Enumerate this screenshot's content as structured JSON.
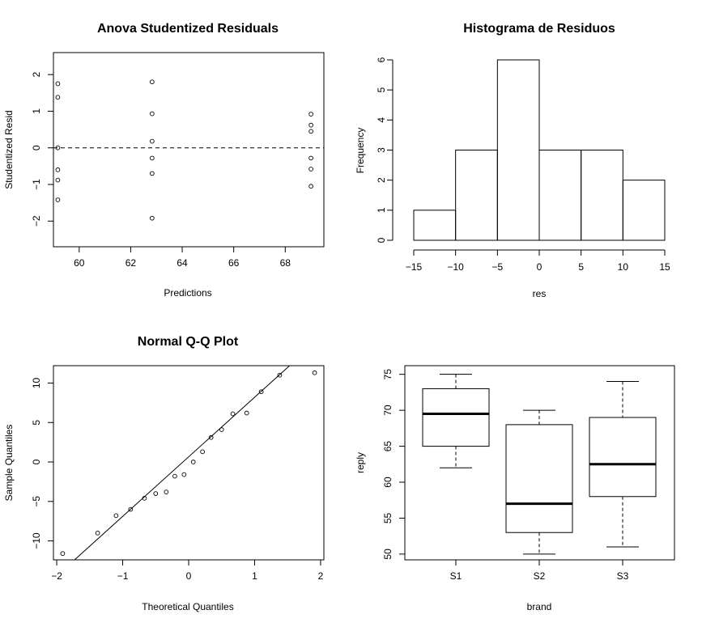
{
  "chart_data": [
    {
      "type": "scatter",
      "title": "Anova Studentized Residuals",
      "xlabel": "Predictions",
      "ylabel": "Studentized Resid",
      "xlim": [
        59.0,
        69.5
      ],
      "ylim": [
        -2.7,
        2.6
      ],
      "xticks": [
        60,
        62,
        64,
        66,
        68
      ],
      "yticks": [
        -2,
        -1,
        0,
        1,
        2
      ],
      "reference_line": {
        "y": 0,
        "style": "dashed"
      },
      "points": [
        {
          "x": 59.17,
          "y": 1.75
        },
        {
          "x": 59.17,
          "y": 1.38
        },
        {
          "x": 59.17,
          "y": 0.0
        },
        {
          "x": 59.17,
          "y": -0.6
        },
        {
          "x": 59.17,
          "y": -0.88
        },
        {
          "x": 59.17,
          "y": -1.42
        },
        {
          "x": 62.83,
          "y": 1.8
        },
        {
          "x": 62.83,
          "y": 0.93
        },
        {
          "x": 62.83,
          "y": 0.18
        },
        {
          "x": 62.83,
          "y": -0.28
        },
        {
          "x": 62.83,
          "y": -0.7
        },
        {
          "x": 62.83,
          "y": -1.92
        },
        {
          "x": 69.0,
          "y": 0.92
        },
        {
          "x": 69.0,
          "y": 0.62
        },
        {
          "x": 69.0,
          "y": 0.45
        },
        {
          "x": 69.0,
          "y": -0.28
        },
        {
          "x": 69.0,
          "y": -0.58
        },
        {
          "x": 69.0,
          "y": -1.05
        }
      ]
    },
    {
      "type": "bar",
      "subtype": "histogram",
      "title": "Histograma de Residuos",
      "xlabel": "res",
      "ylabel": "Frequency",
      "xlim": [
        -15,
        15
      ],
      "ylim": [
        0,
        6
      ],
      "xticks": [
        -15,
        -10,
        -5,
        0,
        5,
        10,
        15
      ],
      "yticks": [
        0,
        1,
        2,
        3,
        4,
        5,
        6
      ],
      "bins": [
        {
          "from": -15,
          "to": -10,
          "count": 1
        },
        {
          "from": -10,
          "to": -5,
          "count": 3
        },
        {
          "from": -5,
          "to": 0,
          "count": 6
        },
        {
          "from": 0,
          "to": 5,
          "count": 3
        },
        {
          "from": 5,
          "to": 10,
          "count": 3
        },
        {
          "from": 10,
          "to": 15,
          "count": 2
        }
      ]
    },
    {
      "type": "scatter",
      "subtype": "qq",
      "title": "Normal Q-Q Plot",
      "xlabel": "Theoretical Quantiles",
      "ylabel": "Sample Quantiles",
      "xlim": [
        -2.05,
        2.05
      ],
      "ylim": [
        -12.4,
        12.2
      ],
      "xticks": [
        -2,
        -1,
        0,
        1,
        2
      ],
      "yticks": [
        -10,
        -5,
        0,
        5,
        10
      ],
      "reference_line": {
        "x1": -1.73,
        "y1": -12.4,
        "x2": 1.53,
        "y2": 12.2
      },
      "points": [
        {
          "x": -1.91,
          "y": -11.6
        },
        {
          "x": -1.38,
          "y": -9.0
        },
        {
          "x": -1.1,
          "y": -6.8
        },
        {
          "x": -0.88,
          "y": -6.0
        },
        {
          "x": -0.67,
          "y": -4.6
        },
        {
          "x": -0.5,
          "y": -4.0
        },
        {
          "x": -0.34,
          "y": -3.8
        },
        {
          "x": -0.21,
          "y": -1.8
        },
        {
          "x": -0.07,
          "y": -1.6
        },
        {
          "x": 0.07,
          "y": 0.0
        },
        {
          "x": 0.21,
          "y": 1.3
        },
        {
          "x": 0.34,
          "y": 3.1
        },
        {
          "x": 0.5,
          "y": 4.1
        },
        {
          "x": 0.67,
          "y": 6.1
        },
        {
          "x": 0.88,
          "y": 6.2
        },
        {
          "x": 1.1,
          "y": 8.9
        },
        {
          "x": 1.38,
          "y": 11.0
        },
        {
          "x": 1.91,
          "y": 11.3
        }
      ]
    },
    {
      "type": "boxplot",
      "title": "",
      "xlabel": "brand",
      "ylabel": "reply",
      "ylim": [
        49.2,
        76.2
      ],
      "yticks": [
        50,
        55,
        60,
        65,
        70,
        75
      ],
      "categories": [
        "S1",
        "S2",
        "S3"
      ],
      "boxes": [
        {
          "min": 62,
          "q1": 65,
          "median": 69.5,
          "q3": 73,
          "max": 75
        },
        {
          "min": 50,
          "q1": 53,
          "median": 57,
          "q3": 68,
          "max": 70
        },
        {
          "min": 51,
          "q1": 58,
          "median": 62.5,
          "q3": 69,
          "max": 74
        }
      ]
    }
  ]
}
